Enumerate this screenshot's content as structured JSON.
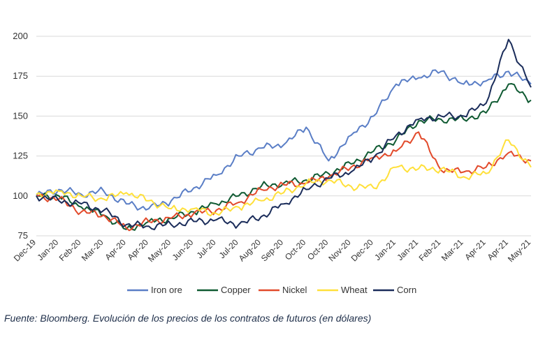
{
  "caption": "Fuente: Bloomberg. Evolución de los precios de los contratos de futuros (en dólares)",
  "chart_data": {
    "type": "line",
    "title": "",
    "xlabel": "",
    "ylabel": "",
    "ylim": [
      75,
      200
    ],
    "yticks": [
      75,
      100,
      125,
      150,
      175,
      200
    ],
    "grid": "horizontal",
    "legend_position": "bottom",
    "categories": [
      "Dec-19",
      "Jan-20",
      "Feb-20",
      "Mar-20",
      "Apr-20",
      "Apr-20",
      "May-20",
      "Jun-20",
      "Jul-20",
      "Jul-20",
      "Aug-20",
      "Sep-20",
      "Oct-20",
      "Oct-20",
      "Nov-20",
      "Dec-20",
      "Jan-21",
      "Jan-21",
      "Feb-21",
      "Mar-21",
      "Apr-21",
      "Apr-21",
      "May-21"
    ],
    "series": [
      {
        "name": "Iron ore",
        "color": "#5a7ec6",
        "values": [
          100,
          104,
          101,
          103,
          95,
          92,
          97,
          105,
          113,
          125,
          130,
          132,
          143,
          122,
          138,
          150,
          170,
          174,
          178,
          170,
          172,
          178,
          170
        ]
      },
      {
        "name": "Copper",
        "color": "#0f5a32",
        "values": [
          100,
          100,
          93,
          88,
          79,
          84,
          86,
          90,
          95,
          100,
          106,
          108,
          110,
          114,
          120,
          128,
          135,
          147,
          148,
          148,
          152,
          170,
          160
        ]
      },
      {
        "name": "Nickel",
        "color": "#e24a2b",
        "values": [
          100,
          98,
          90,
          88,
          80,
          84,
          86,
          89,
          91,
          96,
          104,
          107,
          108,
          112,
          118,
          124,
          128,
          140,
          116,
          115,
          118,
          127,
          122
        ]
      },
      {
        "name": "Wheat",
        "color": "#ffe03a",
        "values": [
          101,
          103,
          100,
          98,
          102,
          97,
          92,
          92,
          89,
          93,
          97,
          102,
          108,
          110,
          106,
          105,
          118,
          117,
          117,
          112,
          114,
          135,
          118
        ]
      },
      {
        "name": "Corn",
        "color": "#1a2c5a",
        "values": [
          100,
          97,
          95,
          91,
          82,
          81,
          82,
          84,
          85,
          82,
          87,
          95,
          104,
          111,
          115,
          124,
          138,
          148,
          150,
          150,
          158,
          198,
          168
        ]
      }
    ]
  }
}
